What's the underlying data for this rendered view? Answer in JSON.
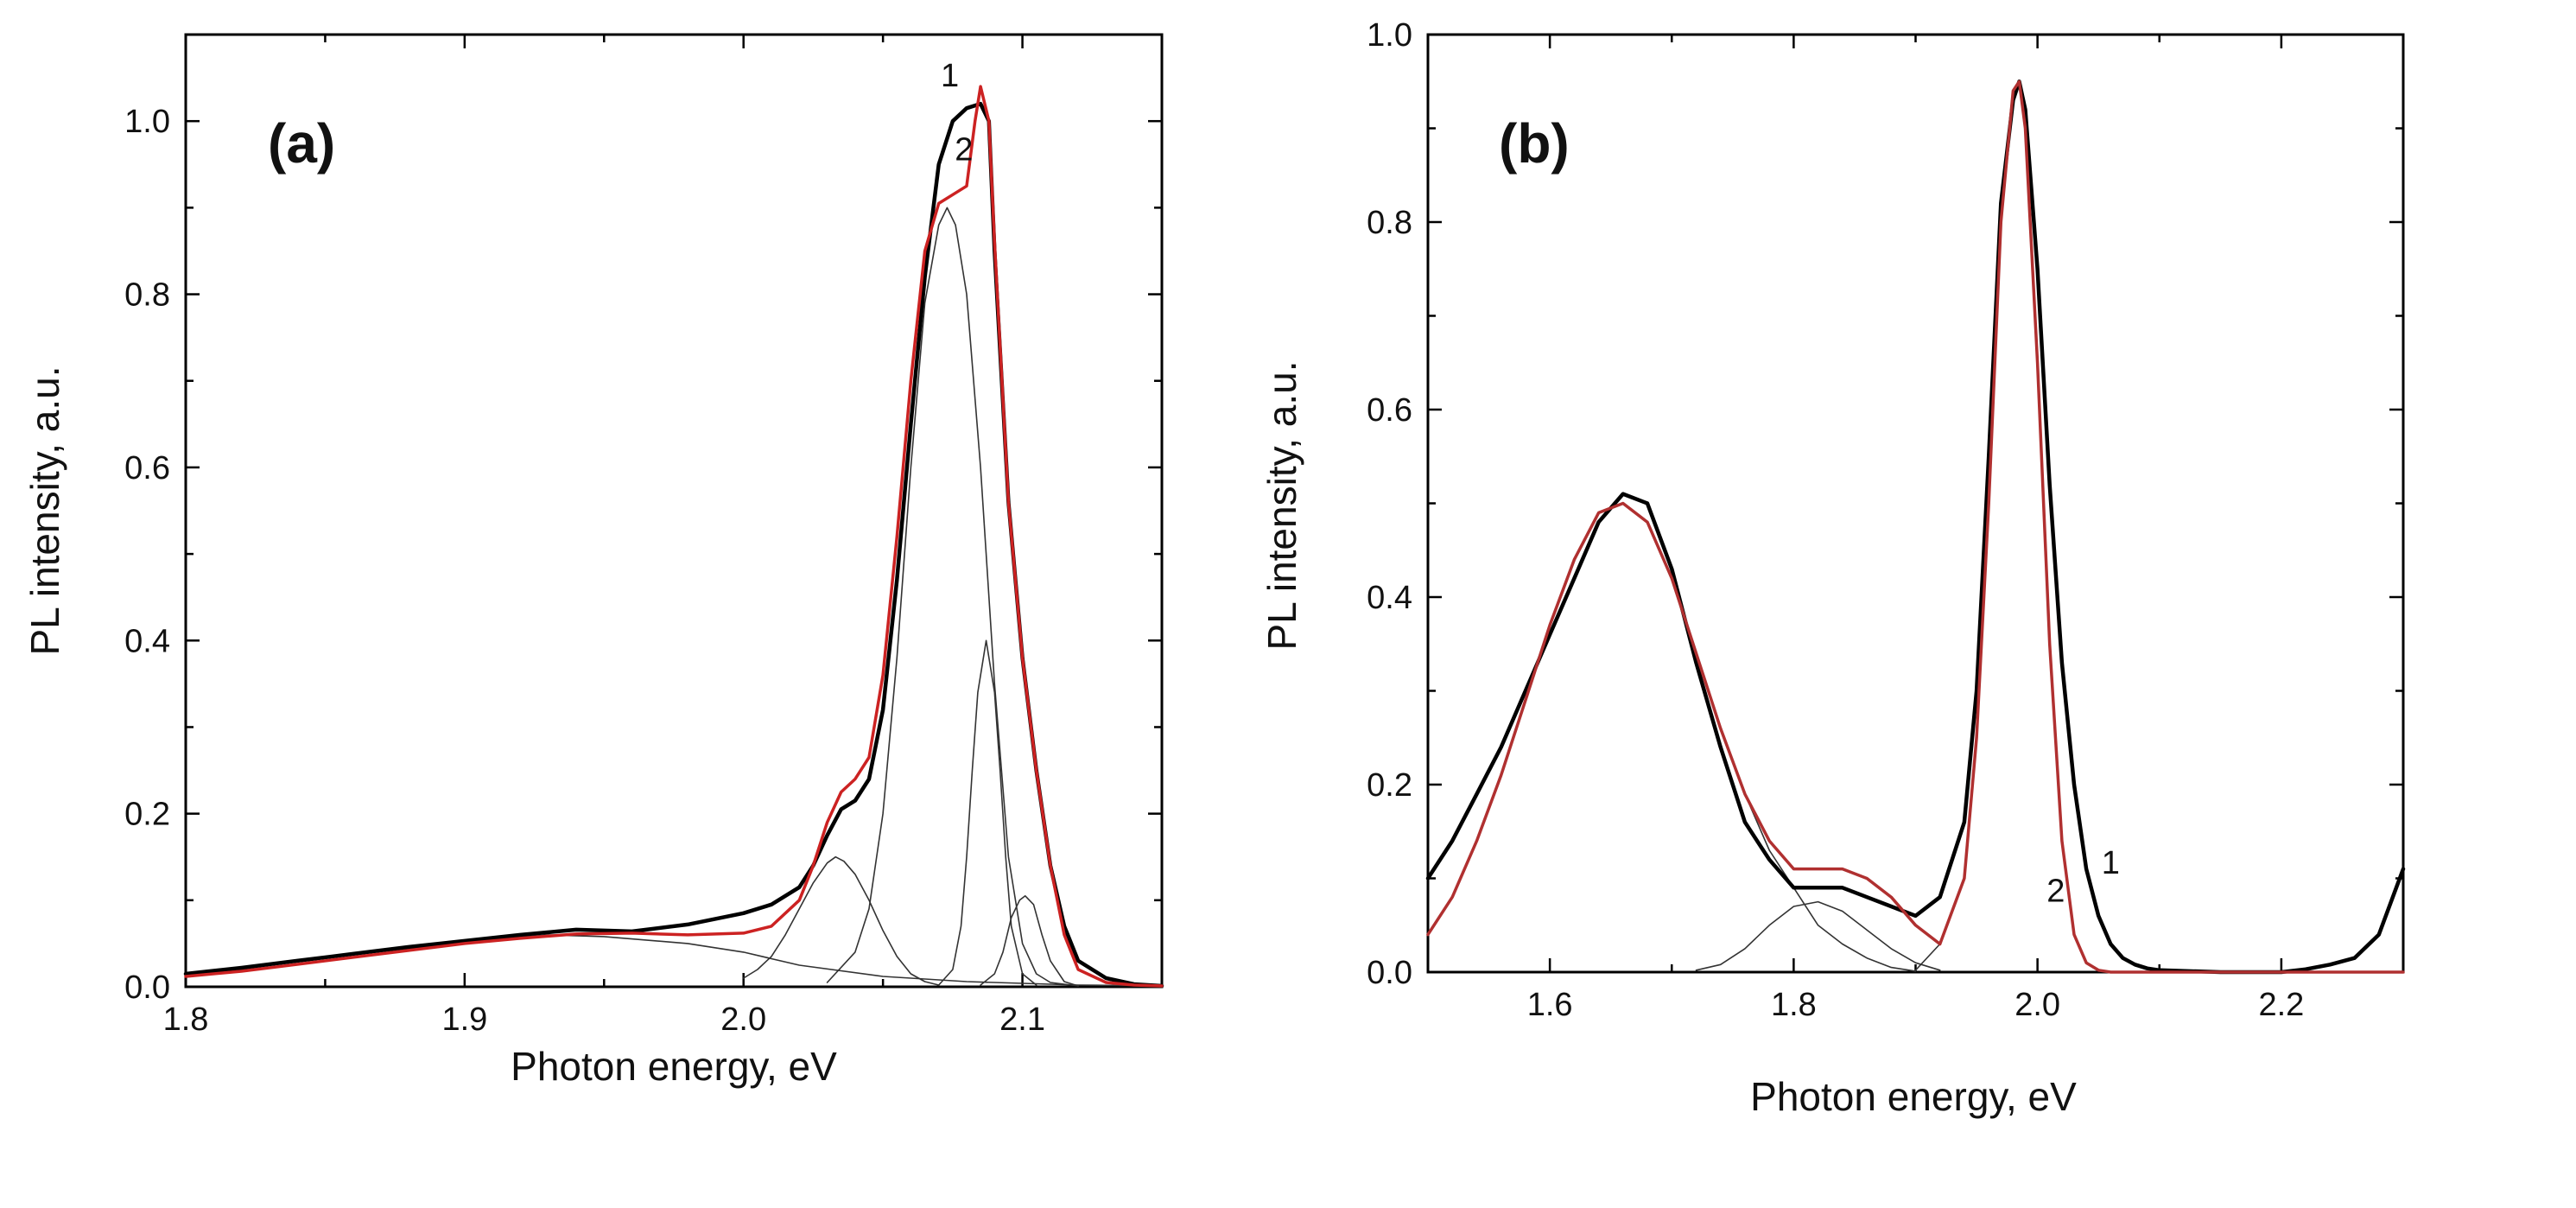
{
  "chart_data": [
    {
      "type": "line",
      "panel_label": "(a)",
      "xlabel": "Photon energy, eV",
      "ylabel": "PL intensity, a.u.",
      "xlim": [
        1.8,
        2.15
      ],
      "ylim": [
        0.0,
        1.1
      ],
      "x_ticks": [
        1.8,
        1.9,
        2.0,
        2.1
      ],
      "x_tick_labels": [
        "1.8",
        "1.9",
        "2.0",
        "2.1"
      ],
      "y_ticks": [
        0.0,
        0.2,
        0.4,
        0.6,
        0.8,
        1.0
      ],
      "y_tick_labels": [
        "0.0",
        "0.2",
        "0.4",
        "0.6",
        "0.8",
        "1.0"
      ],
      "curve_labels": [
        {
          "text": "1",
          "x": 2.074,
          "y": 1.04
        },
        {
          "text": "2",
          "x": 2.079,
          "y": 0.955
        }
      ],
      "series": [
        {
          "name": "1",
          "kind": "experimental",
          "color": "#000000",
          "x": [
            1.8,
            1.82,
            1.84,
            1.86,
            1.88,
            1.9,
            1.92,
            1.94,
            1.96,
            1.98,
            2.0,
            2.01,
            2.02,
            2.025,
            2.03,
            2.035,
            2.04,
            2.045,
            2.05,
            2.055,
            2.06,
            2.065,
            2.07,
            2.075,
            2.08,
            2.085,
            2.088,
            2.09,
            2.095,
            2.1,
            2.105,
            2.11,
            2.115,
            2.12,
            2.13,
            2.14,
            2.15
          ],
          "y": [
            0.015,
            0.022,
            0.03,
            0.038,
            0.046,
            0.053,
            0.06,
            0.066,
            0.064,
            0.072,
            0.085,
            0.095,
            0.115,
            0.14,
            0.175,
            0.205,
            0.215,
            0.24,
            0.32,
            0.47,
            0.65,
            0.82,
            0.95,
            1.0,
            1.015,
            1.02,
            1.0,
            0.85,
            0.56,
            0.38,
            0.25,
            0.14,
            0.07,
            0.03,
            0.01,
            0.003,
            0.001
          ]
        },
        {
          "name": "2",
          "kind": "fit",
          "color": "#cc2222",
          "x": [
            1.8,
            1.82,
            1.84,
            1.86,
            1.88,
            1.9,
            1.92,
            1.94,
            1.96,
            1.98,
            2.0,
            2.01,
            2.02,
            2.025,
            2.03,
            2.035,
            2.04,
            2.045,
            2.05,
            2.055,
            2.06,
            2.065,
            2.07,
            2.075,
            2.08,
            2.083,
            2.085,
            2.088,
            2.09,
            2.095,
            2.1,
            2.105,
            2.11,
            2.115,
            2.12,
            2.13,
            2.14,
            2.15
          ],
          "y": [
            0.012,
            0.018,
            0.026,
            0.034,
            0.042,
            0.05,
            0.056,
            0.061,
            0.062,
            0.06,
            0.062,
            0.07,
            0.1,
            0.14,
            0.19,
            0.225,
            0.24,
            0.265,
            0.36,
            0.52,
            0.7,
            0.85,
            0.905,
            0.915,
            0.925,
            1.0,
            1.04,
            1.0,
            0.86,
            0.56,
            0.38,
            0.25,
            0.14,
            0.06,
            0.02,
            0.005,
            0.002,
            0.001
          ]
        },
        {
          "name": "background",
          "kind": "component",
          "color": "#333333",
          "x": [
            1.8,
            1.85,
            1.9,
            1.93,
            1.95,
            1.98,
            2.0,
            2.02,
            2.05,
            2.08,
            2.1,
            2.12,
            2.15
          ],
          "y": [
            0.012,
            0.03,
            0.052,
            0.06,
            0.058,
            0.05,
            0.04,
            0.025,
            0.012,
            0.006,
            0.004,
            0.002,
            0.001
          ]
        },
        {
          "name": "peak 2.033 eV",
          "kind": "component",
          "color": "#333333",
          "x": [
            2.0,
            2.005,
            2.01,
            2.015,
            2.02,
            2.025,
            2.03,
            2.033,
            2.036,
            2.04,
            2.045,
            2.05,
            2.055,
            2.06,
            2.065,
            2.07
          ],
          "y": [
            0.01,
            0.02,
            0.035,
            0.06,
            0.09,
            0.12,
            0.143,
            0.15,
            0.145,
            0.13,
            0.1,
            0.065,
            0.035,
            0.015,
            0.006,
            0.002
          ]
        },
        {
          "name": "peak 2.073 eV",
          "kind": "component",
          "color": "#333333",
          "x": [
            2.03,
            2.04,
            2.045,
            2.05,
            2.055,
            2.06,
            2.065,
            2.07,
            2.073,
            2.076,
            2.08,
            2.085,
            2.09,
            2.095,
            2.1,
            2.105,
            2.11,
            2.12
          ],
          "y": [
            0.005,
            0.04,
            0.09,
            0.2,
            0.38,
            0.6,
            0.79,
            0.88,
            0.9,
            0.88,
            0.8,
            0.6,
            0.35,
            0.15,
            0.05,
            0.015,
            0.005,
            0.001
          ]
        },
        {
          "name": "peak 2.087 eV",
          "kind": "component",
          "color": "#333333",
          "x": [
            2.07,
            2.075,
            2.078,
            2.08,
            2.082,
            2.084,
            2.087,
            2.09,
            2.092,
            2.094,
            2.096,
            2.1,
            2.105
          ],
          "y": [
            0.002,
            0.02,
            0.07,
            0.15,
            0.25,
            0.34,
            0.4,
            0.34,
            0.25,
            0.15,
            0.07,
            0.015,
            0.002
          ]
        },
        {
          "name": "peak 2.101 eV",
          "kind": "component",
          "color": "#333333",
          "x": [
            2.085,
            2.09,
            2.093,
            2.096,
            2.099,
            2.101,
            2.104,
            2.107,
            2.11,
            2.115,
            2.12
          ],
          "y": [
            0.002,
            0.015,
            0.04,
            0.08,
            0.1,
            0.105,
            0.095,
            0.06,
            0.03,
            0.006,
            0.001
          ]
        }
      ]
    },
    {
      "type": "line",
      "panel_label": "(b)",
      "xlabel": "Photon energy, eV",
      "ylabel": "PL intensity, a.u.",
      "xlim": [
        1.5,
        2.3
      ],
      "ylim": [
        0.0,
        1.0
      ],
      "x_ticks": [
        1.6,
        1.8,
        2.0,
        2.2
      ],
      "x_tick_labels": [
        "1.6",
        "1.8",
        "2.0",
        "2.2"
      ],
      "y_ticks": [
        0.0,
        0.2,
        0.4,
        0.6,
        0.8,
        1.0
      ],
      "y_tick_labels": [
        "0.0",
        "0.2",
        "0.4",
        "0.6",
        "0.8",
        "1.0"
      ],
      "curve_labels": [
        {
          "text": "1",
          "x": 2.06,
          "y": 0.105
        },
        {
          "text": "2",
          "x": 2.015,
          "y": 0.075
        }
      ],
      "series": [
        {
          "name": "1",
          "kind": "experimental",
          "color": "#000000",
          "x": [
            1.5,
            1.52,
            1.54,
            1.56,
            1.58,
            1.6,
            1.62,
            1.64,
            1.66,
            1.68,
            1.7,
            1.72,
            1.74,
            1.76,
            1.78,
            1.8,
            1.82,
            1.84,
            1.86,
            1.88,
            1.9,
            1.92,
            1.94,
            1.95,
            1.96,
            1.97,
            1.98,
            1.985,
            1.99,
            2.0,
            2.01,
            2.02,
            2.03,
            2.04,
            2.05,
            2.06,
            2.07,
            2.08,
            2.09,
            2.1,
            2.15,
            2.2,
            2.22,
            2.24,
            2.26,
            2.28,
            2.3
          ],
          "y": [
            0.1,
            0.14,
            0.19,
            0.24,
            0.3,
            0.36,
            0.42,
            0.48,
            0.51,
            0.5,
            0.43,
            0.33,
            0.24,
            0.16,
            0.12,
            0.09,
            0.09,
            0.09,
            0.08,
            0.07,
            0.06,
            0.08,
            0.16,
            0.3,
            0.55,
            0.82,
            0.93,
            0.95,
            0.92,
            0.75,
            0.52,
            0.33,
            0.2,
            0.11,
            0.06,
            0.03,
            0.015,
            0.008,
            0.004,
            0.002,
            0.0,
            0.0,
            0.003,
            0.008,
            0.015,
            0.04,
            0.11
          ]
        },
        {
          "name": "2",
          "kind": "fit",
          "color": "#b03030",
          "x": [
            1.5,
            1.52,
            1.54,
            1.56,
            1.58,
            1.6,
            1.62,
            1.64,
            1.66,
            1.68,
            1.7,
            1.72,
            1.74,
            1.76,
            1.78,
            1.8,
            1.82,
            1.84,
            1.86,
            1.88,
            1.9,
            1.92,
            1.94,
            1.95,
            1.96,
            1.97,
            1.98,
            1.985,
            1.99,
            2.0,
            2.01,
            2.02,
            2.03,
            2.04,
            2.05,
            2.06,
            2.1,
            2.2,
            2.3
          ],
          "y": [
            0.04,
            0.08,
            0.14,
            0.21,
            0.29,
            0.37,
            0.44,
            0.49,
            0.5,
            0.48,
            0.42,
            0.34,
            0.26,
            0.19,
            0.14,
            0.11,
            0.11,
            0.11,
            0.1,
            0.08,
            0.05,
            0.03,
            0.1,
            0.25,
            0.5,
            0.8,
            0.94,
            0.95,
            0.9,
            0.65,
            0.35,
            0.14,
            0.04,
            0.01,
            0.002,
            0.0,
            0.0,
            0.0,
            0.0
          ]
        },
        {
          "name": "peak 1.66 eV",
          "kind": "component",
          "color": "#333333",
          "x": [
            1.5,
            1.52,
            1.54,
            1.56,
            1.58,
            1.6,
            1.62,
            1.64,
            1.66,
            1.68,
            1.7,
            1.72,
            1.74,
            1.76,
            1.78,
            1.8,
            1.82,
            1.84,
            1.86,
            1.88,
            1.9
          ],
          "y": [
            0.04,
            0.08,
            0.14,
            0.21,
            0.29,
            0.37,
            0.44,
            0.49,
            0.5,
            0.48,
            0.42,
            0.34,
            0.26,
            0.19,
            0.13,
            0.09,
            0.05,
            0.03,
            0.015,
            0.005,
            0.001
          ]
        },
        {
          "name": "peak 1.82 eV",
          "kind": "component",
          "color": "#333333",
          "x": [
            1.72,
            1.74,
            1.76,
            1.78,
            1.8,
            1.82,
            1.84,
            1.86,
            1.88,
            1.9,
            1.92
          ],
          "y": [
            0.002,
            0.008,
            0.025,
            0.05,
            0.07,
            0.075,
            0.065,
            0.045,
            0.025,
            0.01,
            0.002
          ]
        },
        {
          "name": "peak 1.98 eV",
          "kind": "component",
          "color": "#333333",
          "x": [
            1.9,
            1.92,
            1.94,
            1.95,
            1.96,
            1.97,
            1.98,
            1.985,
            1.99,
            2.0,
            2.01,
            2.02,
            2.03,
            2.04,
            2.05
          ],
          "y": [
            0.002,
            0.03,
            0.1,
            0.25,
            0.5,
            0.8,
            0.94,
            0.95,
            0.9,
            0.65,
            0.35,
            0.14,
            0.04,
            0.01,
            0.002
          ]
        }
      ]
    }
  ]
}
